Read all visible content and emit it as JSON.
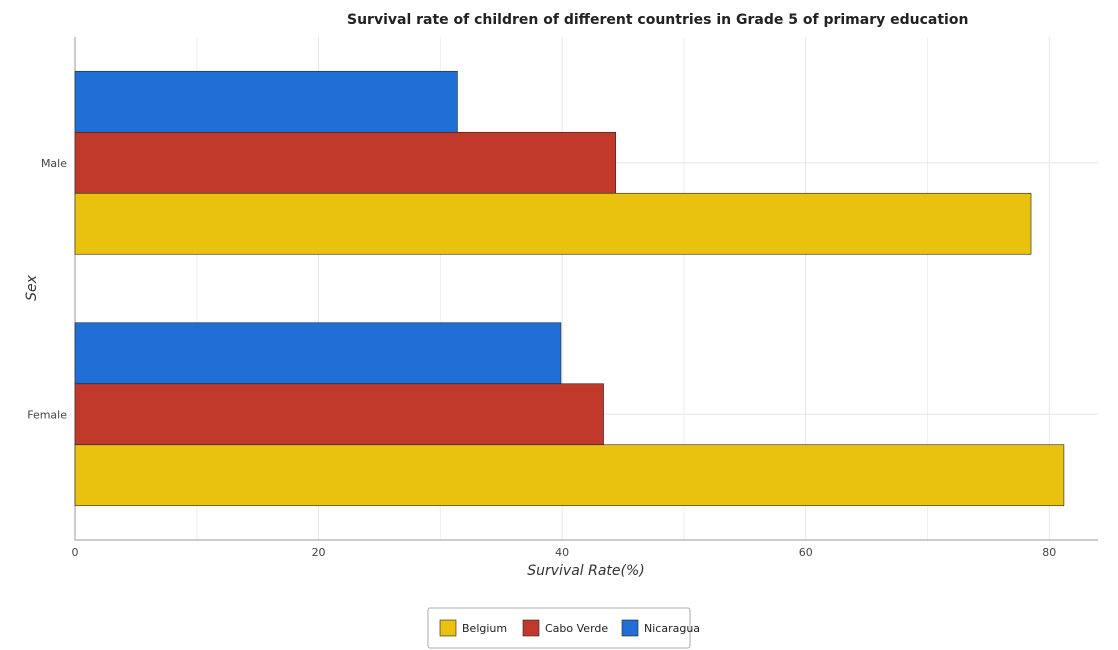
{
  "chart_data": {
    "type": "bar",
    "orientation": "horizontal",
    "title": "Survival rate of children of different countries in Grade 5 of primary education",
    "xlabel": "Survival Rate(%)",
    "ylabel": "Sex",
    "categories": [
      "Female",
      "Male"
    ],
    "series": [
      {
        "name": "Belgium",
        "color": "#e8c20f",
        "values": [
          81.2,
          78.5
        ]
      },
      {
        "name": "Cabo Verde",
        "color": "#c0392b",
        "values": [
          43.4,
          44.4
        ]
      },
      {
        "name": "Nicaragua",
        "color": "#1f6fd6",
        "values": [
          39.9,
          31.4
        ]
      }
    ],
    "xlim": [
      0,
      84
    ],
    "xticks": [
      0,
      20,
      40,
      60,
      80
    ],
    "grid": true,
    "legend_position": "bottom-center"
  }
}
